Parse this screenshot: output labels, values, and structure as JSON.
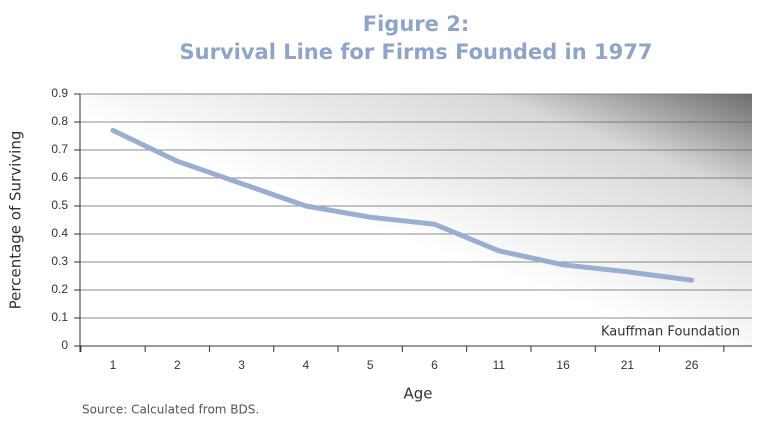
{
  "chart_data": {
    "type": "line",
    "title": "Figure 2:",
    "subtitle": "Survival Line for Firms Founded in 1977",
    "x_label": "Age",
    "y_label": "Percentage of Surviving",
    "annotation": "Kauffman Foundation",
    "source": "Source: Calculated from BDS.",
    "categories": [
      "1",
      "2",
      "3",
      "4",
      "5",
      "6",
      "11",
      "16",
      "21",
      "26"
    ],
    "values": [
      0.77,
      0.66,
      0.58,
      0.5,
      0.46,
      0.435,
      0.34,
      0.29,
      0.265,
      0.235
    ],
    "color": "#9aaed2",
    "ylim": [
      0,
      0.9
    ],
    "yticks": [
      0,
      0.1,
      0.2,
      0.3,
      0.4,
      0.5,
      0.6,
      0.7,
      0.8,
      0.9
    ],
    "grid": true
  }
}
